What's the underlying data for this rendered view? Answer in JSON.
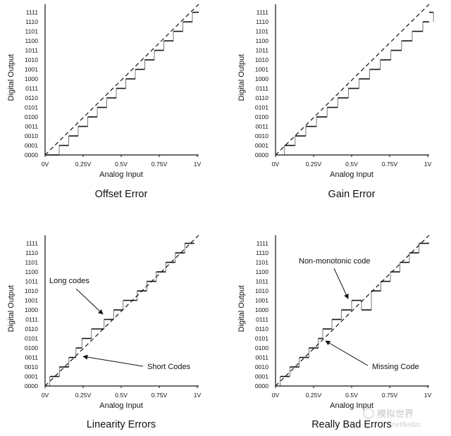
{
  "panels": [
    {
      "title": "Offset Error",
      "x_axis_label": "Analog Input",
      "y_axis_label": "Digital Output",
      "kind": "offset",
      "annotations": []
    },
    {
      "title": "Gain Error",
      "x_axis_label": "Analog Input",
      "y_axis_label": "Digital Output",
      "kind": "gain",
      "annotations": []
    },
    {
      "title": "Linearity Errors",
      "x_axis_label": "Analog Input",
      "y_axis_label": "Digital Output",
      "kind": "linearity",
      "annotations": [
        {
          "text": "Long codes"
        },
        {
          "text": "Short Codes"
        }
      ]
    },
    {
      "title": "Really Bad Errors",
      "x_axis_label": "Analog Input",
      "y_axis_label": "Digital Output",
      "kind": "bad",
      "annotations": [
        {
          "text": "Non-monotonic code"
        },
        {
          "text": "Missing Code"
        }
      ]
    }
  ],
  "y_codes": [
    "0000",
    "0001",
    "0010",
    "0011",
    "0100",
    "0101",
    "0110",
    "0111",
    "1000",
    "1001",
    "1010",
    "1011",
    "1100",
    "1101",
    "1110",
    "1111"
  ],
  "x_ticks": [
    "0V",
    "0.25V",
    "0.5V",
    "0.75V",
    "1V"
  ],
  "watermark": {
    "line1": "模拟世界",
    "line2": "net/keilzc"
  },
  "colors": {
    "line": "#111111",
    "background": "#ffffff",
    "watermark": "#c7c7c7"
  }
}
